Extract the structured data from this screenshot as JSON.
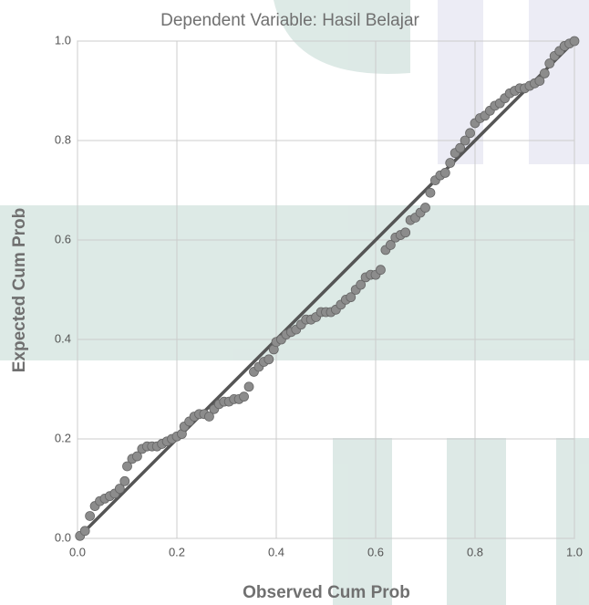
{
  "chart_data": {
    "type": "scatter",
    "title": "Dependent Variable: Hasil Belajar",
    "x_label": "Observed Cum Prob",
    "y_label": "Expected Cum Prob",
    "color": "#8c8c8c",
    "line_color": "#555555",
    "grid": true,
    "xlim": [
      0,
      1
    ],
    "ylim": [
      0,
      1
    ],
    "xticks": [
      {
        "value": 0,
        "label": "0.0"
      },
      0.2,
      0.4,
      0.6,
      0.8,
      {
        "value": 1,
        "label": "1.0"
      }
    ],
    "yticks": [
      {
        "value": 0,
        "label": "0.0"
      },
      0.2,
      0.4,
      0.6,
      0.8,
      {
        "value": 1,
        "label": "1.0"
      }
    ],
    "x": [
      0.005,
      0.015,
      0.025,
      0.035,
      0.045,
      0.055,
      0.065,
      0.075,
      0.085,
      0.095,
      0.1,
      0.11,
      0.12,
      0.13,
      0.14,
      0.15,
      0.16,
      0.17,
      0.18,
      0.19,
      0.2,
      0.21,
      0.215,
      0.225,
      0.235,
      0.245,
      0.255,
      0.265,
      0.275,
      0.285,
      0.295,
      0.305,
      0.315,
      0.325,
      0.335,
      0.345,
      0.355,
      0.365,
      0.375,
      0.385,
      0.395,
      0.4,
      0.41,
      0.42,
      0.43,
      0.44,
      0.45,
      0.46,
      0.47,
      0.48,
      0.49,
      0.5,
      0.51,
      0.52,
      0.53,
      0.54,
      0.55,
      0.56,
      0.57,
      0.58,
      0.59,
      0.6,
      0.61,
      0.62,
      0.63,
      0.64,
      0.65,
      0.66,
      0.67,
      0.68,
      0.69,
      0.7,
      0.71,
      0.72,
      0.73,
      0.74,
      0.75,
      0.76,
      0.77,
      0.78,
      0.79,
      0.8,
      0.81,
      0.82,
      0.83,
      0.84,
      0.85,
      0.86,
      0.87,
      0.88,
      0.89,
      0.9,
      0.91,
      0.92,
      0.93,
      0.94,
      0.95,
      0.96,
      0.97,
      0.98,
      0.99,
      1.0
    ],
    "values": [
      0.005,
      0.015,
      0.045,
      0.065,
      0.075,
      0.08,
      0.085,
      0.09,
      0.1,
      0.115,
      0.145,
      0.16,
      0.165,
      0.18,
      0.185,
      0.185,
      0.185,
      0.19,
      0.195,
      0.2,
      0.205,
      0.21,
      0.225,
      0.235,
      0.245,
      0.25,
      0.25,
      0.245,
      0.26,
      0.27,
      0.275,
      0.275,
      0.28,
      0.28,
      0.285,
      0.305,
      0.335,
      0.345,
      0.355,
      0.36,
      0.38,
      0.395,
      0.4,
      0.41,
      0.415,
      0.42,
      0.43,
      0.44,
      0.44,
      0.445,
      0.455,
      0.455,
      0.455,
      0.46,
      0.47,
      0.48,
      0.485,
      0.5,
      0.51,
      0.525,
      0.53,
      0.53,
      0.54,
      0.58,
      0.59,
      0.605,
      0.61,
      0.615,
      0.64,
      0.645,
      0.655,
      0.665,
      0.695,
      0.72,
      0.73,
      0.735,
      0.755,
      0.775,
      0.785,
      0.8,
      0.815,
      0.835,
      0.845,
      0.85,
      0.86,
      0.87,
      0.875,
      0.885,
      0.895,
      0.9,
      0.905,
      0.905,
      0.91,
      0.915,
      0.92,
      0.935,
      0.955,
      0.97,
      0.98,
      0.99,
      0.995,
      1.0
    ]
  }
}
